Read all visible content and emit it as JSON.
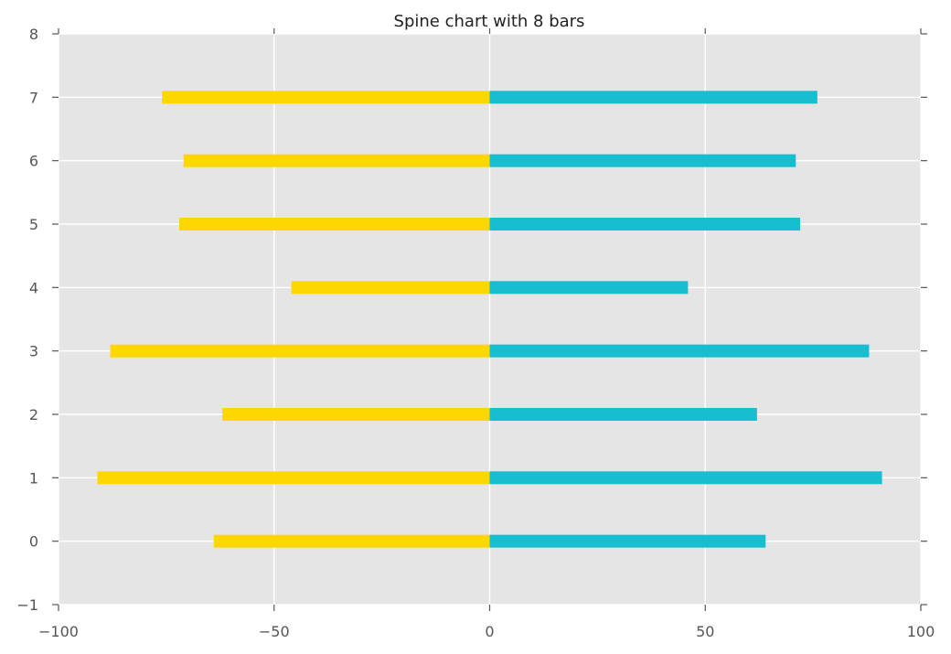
{
  "chart_data": {
    "type": "bar",
    "orientation": "horizontal",
    "title": "Spine chart with 8 bars",
    "xlabel": "",
    "ylabel": "",
    "categories": [
      "0",
      "1",
      "2",
      "3",
      "4",
      "5",
      "6",
      "7"
    ],
    "series": [
      {
        "values": [
          -64,
          -91,
          -62,
          -88,
          -46,
          -72,
          -71,
          -76
        ],
        "color": "#FFD700"
      },
      {
        "values": [
          64,
          91,
          62,
          88,
          46,
          72,
          71,
          76
        ],
        "color": "#17BECF"
      }
    ],
    "xlim": [
      -100,
      100
    ],
    "ylim": [
      -1,
      8
    ],
    "xticks": [
      -100,
      -50,
      0,
      50,
      100
    ],
    "xtick_labels": [
      "−100",
      "−50",
      "0",
      "50",
      "100"
    ],
    "yticks": [
      -1,
      0,
      1,
      2,
      3,
      4,
      5,
      6,
      7,
      8
    ],
    "ytick_labels": [
      "−1",
      "0",
      "1",
      "2",
      "3",
      "4",
      "5",
      "6",
      "7",
      "8"
    ],
    "grid": true,
    "background_color": "#E5E5E5",
    "grid_color": "#FFFFFF"
  }
}
